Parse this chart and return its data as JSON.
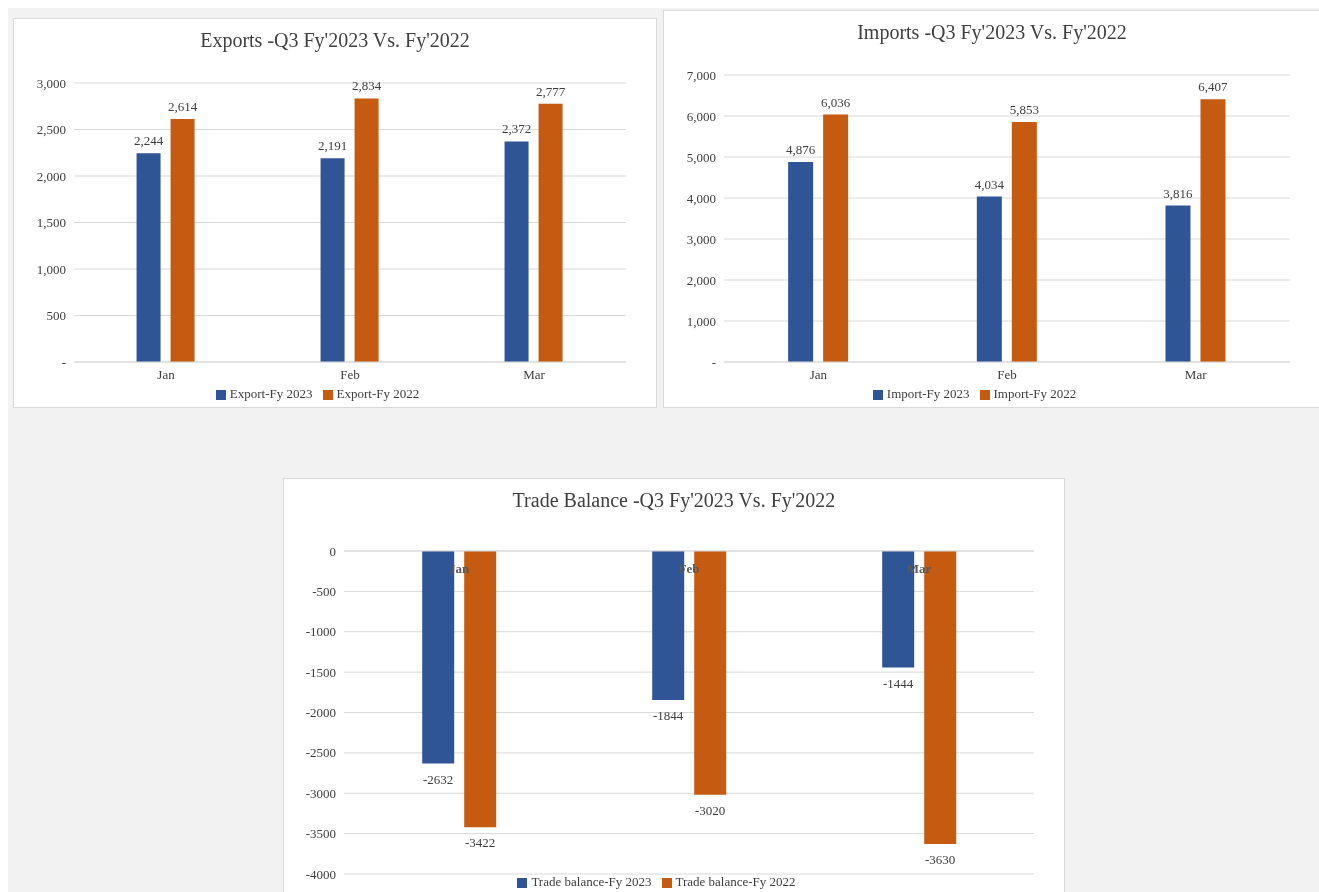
{
  "chart_data": [
    {
      "type": "bar",
      "title": "Exports -Q3 Fy'2023 Vs. Fy'2022",
      "categories": [
        "Jan",
        "Feb",
        "Mar"
      ],
      "series": [
        {
          "name": "Export-Fy 2023",
          "color": "#2f5597",
          "values": [
            2244,
            2191,
            2372
          ],
          "value_labels": [
            "2,244",
            "2,191",
            "2,372"
          ]
        },
        {
          "name": "Export-Fy 2022",
          "color": "#c55a11",
          "values": [
            2614,
            2834,
            2777
          ],
          "value_labels": [
            "2,614",
            "2,834",
            "2,777"
          ]
        }
      ],
      "ylim": [
        0,
        3000
      ],
      "yticks": [
        {
          "value": 0,
          "label": "-"
        },
        500,
        {
          "value": 1000,
          "label": "1,000"
        },
        {
          "value": 1500,
          "label": "1,500"
        },
        {
          "value": 2000,
          "label": "2,000"
        },
        {
          "value": 2500,
          "label": "2,500"
        },
        {
          "value": 3000,
          "label": "3,000"
        }
      ],
      "grid": "y",
      "legend": "bottom"
    },
    {
      "type": "bar",
      "title": "Imports -Q3 Fy'2023 Vs. Fy'2022",
      "categories": [
        "Jan",
        "Feb",
        "Mar"
      ],
      "series": [
        {
          "name": "Import-Fy 2023",
          "color": "#2f5597",
          "values": [
            4876,
            4034,
            3816
          ],
          "value_labels": [
            "4,876",
            "4,034",
            "3,816"
          ]
        },
        {
          "name": "Import-Fy 2022",
          "color": "#c55a11",
          "values": [
            6036,
            5853,
            6407
          ],
          "value_labels": [
            "6,036",
            "5,853",
            "6,407"
          ]
        }
      ],
      "ylim": [
        0,
        7000
      ],
      "yticks": [
        {
          "value": 0,
          "label": "-"
        },
        {
          "value": 1000,
          "label": "1,000"
        },
        {
          "value": 2000,
          "label": "2,000"
        },
        {
          "value": 3000,
          "label": "3,000"
        },
        {
          "value": 4000,
          "label": "4,000"
        },
        {
          "value": 5000,
          "label": "5,000"
        },
        {
          "value": 6000,
          "label": "6,000"
        },
        {
          "value": 7000,
          "label": "7,000"
        }
      ],
      "grid": "y",
      "legend": "bottom"
    },
    {
      "type": "bar",
      "title": "Trade Balance -Q3 Fy'2023 Vs. Fy'2022",
      "categories": [
        "Jan",
        "Feb",
        "Mar"
      ],
      "series": [
        {
          "name": "Trade balance-Fy 2023",
          "color": "#2f5597",
          "values": [
            -2632,
            -1844,
            -1444
          ],
          "value_labels": [
            "-2632",
            "-1844",
            "-1444"
          ]
        },
        {
          "name": "Trade balance-Fy 2022",
          "color": "#c55a11",
          "values": [
            -3422,
            -3020,
            -3630
          ],
          "value_labels": [
            "-3422",
            "-3020",
            "-3630"
          ]
        }
      ],
      "ylim": [
        -4000,
        0
      ],
      "yticks": [
        -4000,
        -3500,
        -3000,
        -2500,
        -2000,
        -1500,
        -1000,
        -500,
        0
      ],
      "grid": "y",
      "legend": "bottom"
    }
  ]
}
